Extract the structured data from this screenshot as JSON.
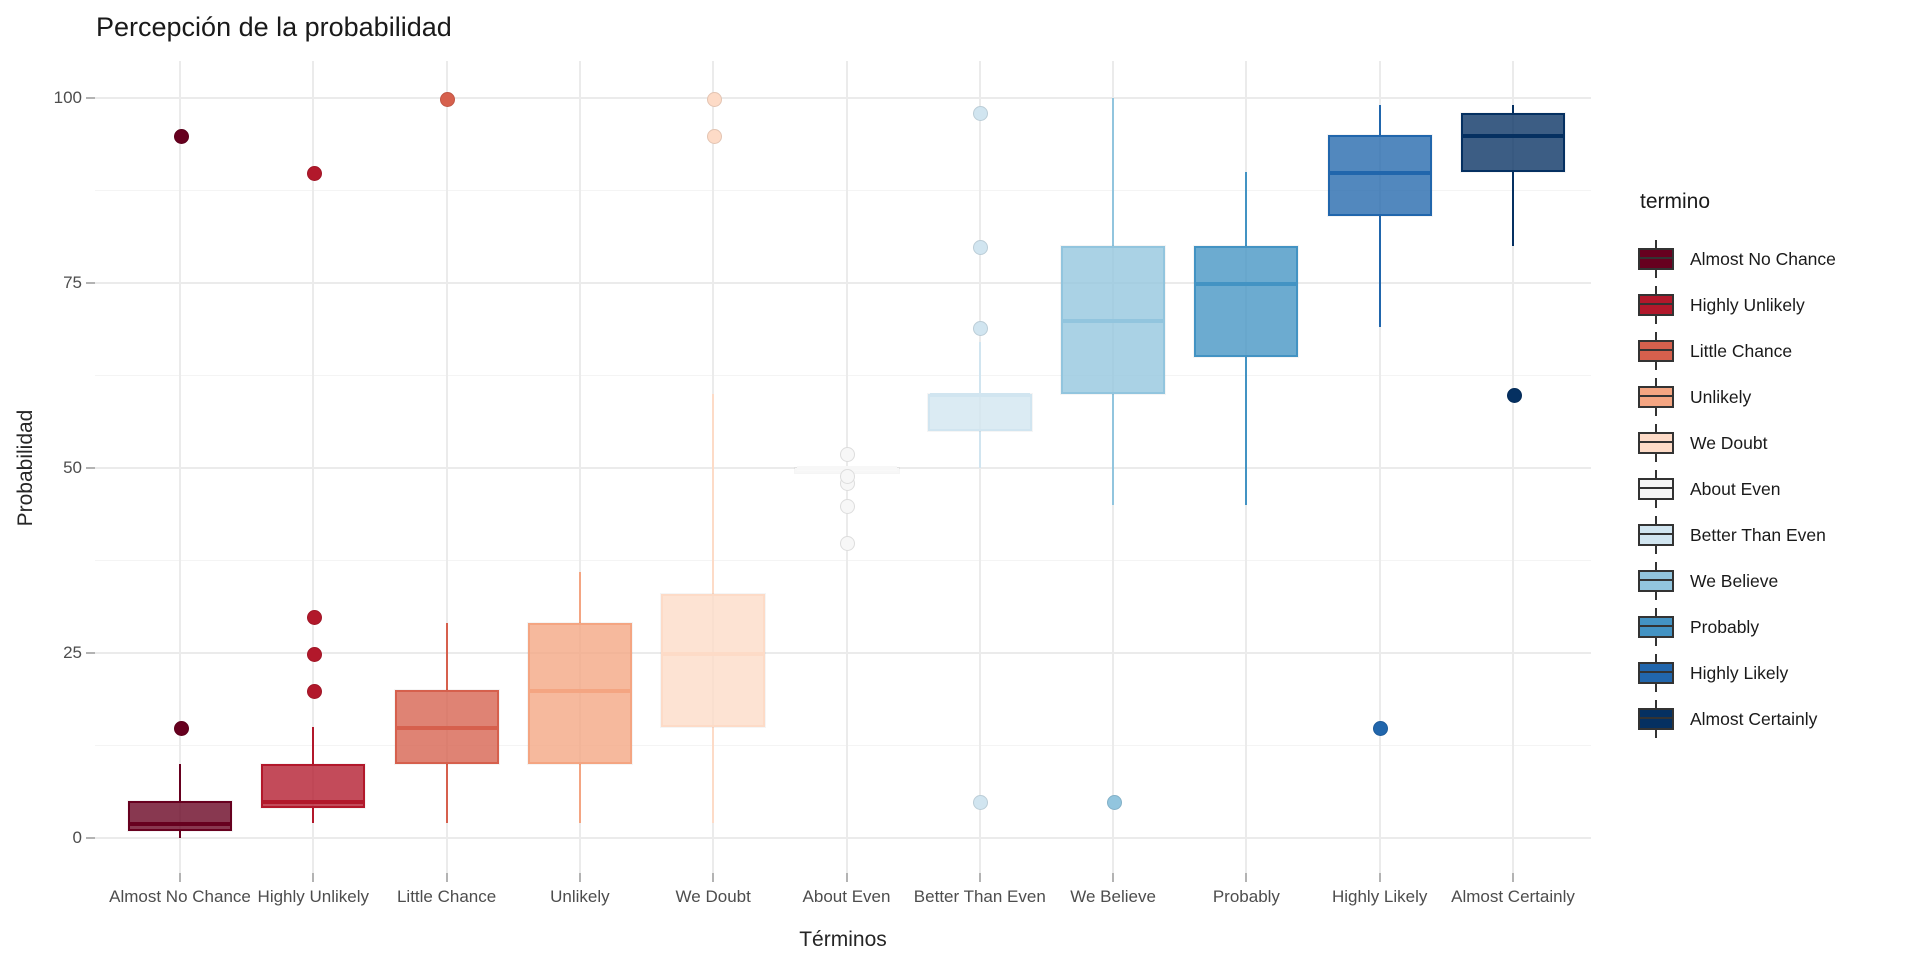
{
  "chart_data": {
    "type": "boxplot",
    "title": "Percepción de la probabilidad",
    "xlabel": "Términos",
    "ylabel": "Probabilidad",
    "legend_title": "termino",
    "ylim": [
      0,
      100
    ],
    "yticks": [
      0,
      25,
      50,
      75,
      100
    ],
    "yticks_minor": [
      12.5,
      37.5,
      62.5,
      87.5
    ],
    "grid": "on",
    "legend_position": "right",
    "categories": [
      "Almost No Chance",
      "Highly Unlikely",
      "Little Chance",
      "Unlikely",
      "We Doubt",
      "About Even",
      "Better Than Even",
      "We Believe",
      "Probably",
      "Highly Likely",
      "Almost Certainly"
    ],
    "series": [
      {
        "name": "Almost No Chance",
        "color": "#67001F",
        "q1": 1,
        "median": 2,
        "q3": 5,
        "whisker_low": 0,
        "whisker_high": 10,
        "outliers": [
          15,
          95
        ]
      },
      {
        "name": "Highly Unlikely",
        "color": "#B2182B",
        "q1": 4,
        "median": 5,
        "q3": 10,
        "whisker_low": 2,
        "whisker_high": 15,
        "outliers": [
          20,
          25,
          30,
          90
        ]
      },
      {
        "name": "Little Chance",
        "color": "#D6604D",
        "q1": 10,
        "median": 15,
        "q3": 20,
        "whisker_low": 2,
        "whisker_high": 29,
        "outliers": [
          100
        ]
      },
      {
        "name": "Unlikely",
        "color": "#F4A582",
        "q1": 10,
        "median": 20,
        "q3": 29,
        "whisker_low": 2,
        "whisker_high": 36,
        "outliers": []
      },
      {
        "name": "We Doubt",
        "color": "#FDDBC7",
        "q1": 15,
        "median": 25,
        "q3": 33,
        "whisker_low": 2,
        "whisker_high": 60,
        "outliers": [
          95,
          100
        ]
      },
      {
        "name": "About Even",
        "color": "#F7F7F7",
        "q1": 50,
        "median": 50,
        "q3": 50,
        "whisker_low": 50,
        "whisker_high": 50,
        "outliers": [
          40,
          45,
          48,
          49,
          52
        ]
      },
      {
        "name": "Better Than Even",
        "color": "#D1E5F0",
        "q1": 55,
        "median": 60,
        "q3": 60,
        "whisker_low": 50,
        "whisker_high": 67,
        "outliers": [
          5,
          69,
          80,
          98
        ]
      },
      {
        "name": "We Believe",
        "color": "#92C5DE",
        "q1": 60,
        "median": 70,
        "q3": 80,
        "whisker_low": 45,
        "whisker_high": 100,
        "outliers": [
          5
        ]
      },
      {
        "name": "Probably",
        "color": "#4393C3",
        "q1": 65,
        "median": 75,
        "q3": 80,
        "whisker_low": 45,
        "whisker_high": 90,
        "outliers": []
      },
      {
        "name": "Highly Likely",
        "color": "#2166AC",
        "q1": 84,
        "median": 90,
        "q3": 95,
        "whisker_low": 69,
        "whisker_high": 99,
        "outliers": [
          15
        ]
      },
      {
        "name": "Almost Certainly",
        "color": "#053061",
        "q1": 90,
        "median": 95,
        "q3": 98,
        "whisker_low": 80,
        "whisker_high": 99,
        "outliers": [
          60
        ]
      }
    ]
  }
}
